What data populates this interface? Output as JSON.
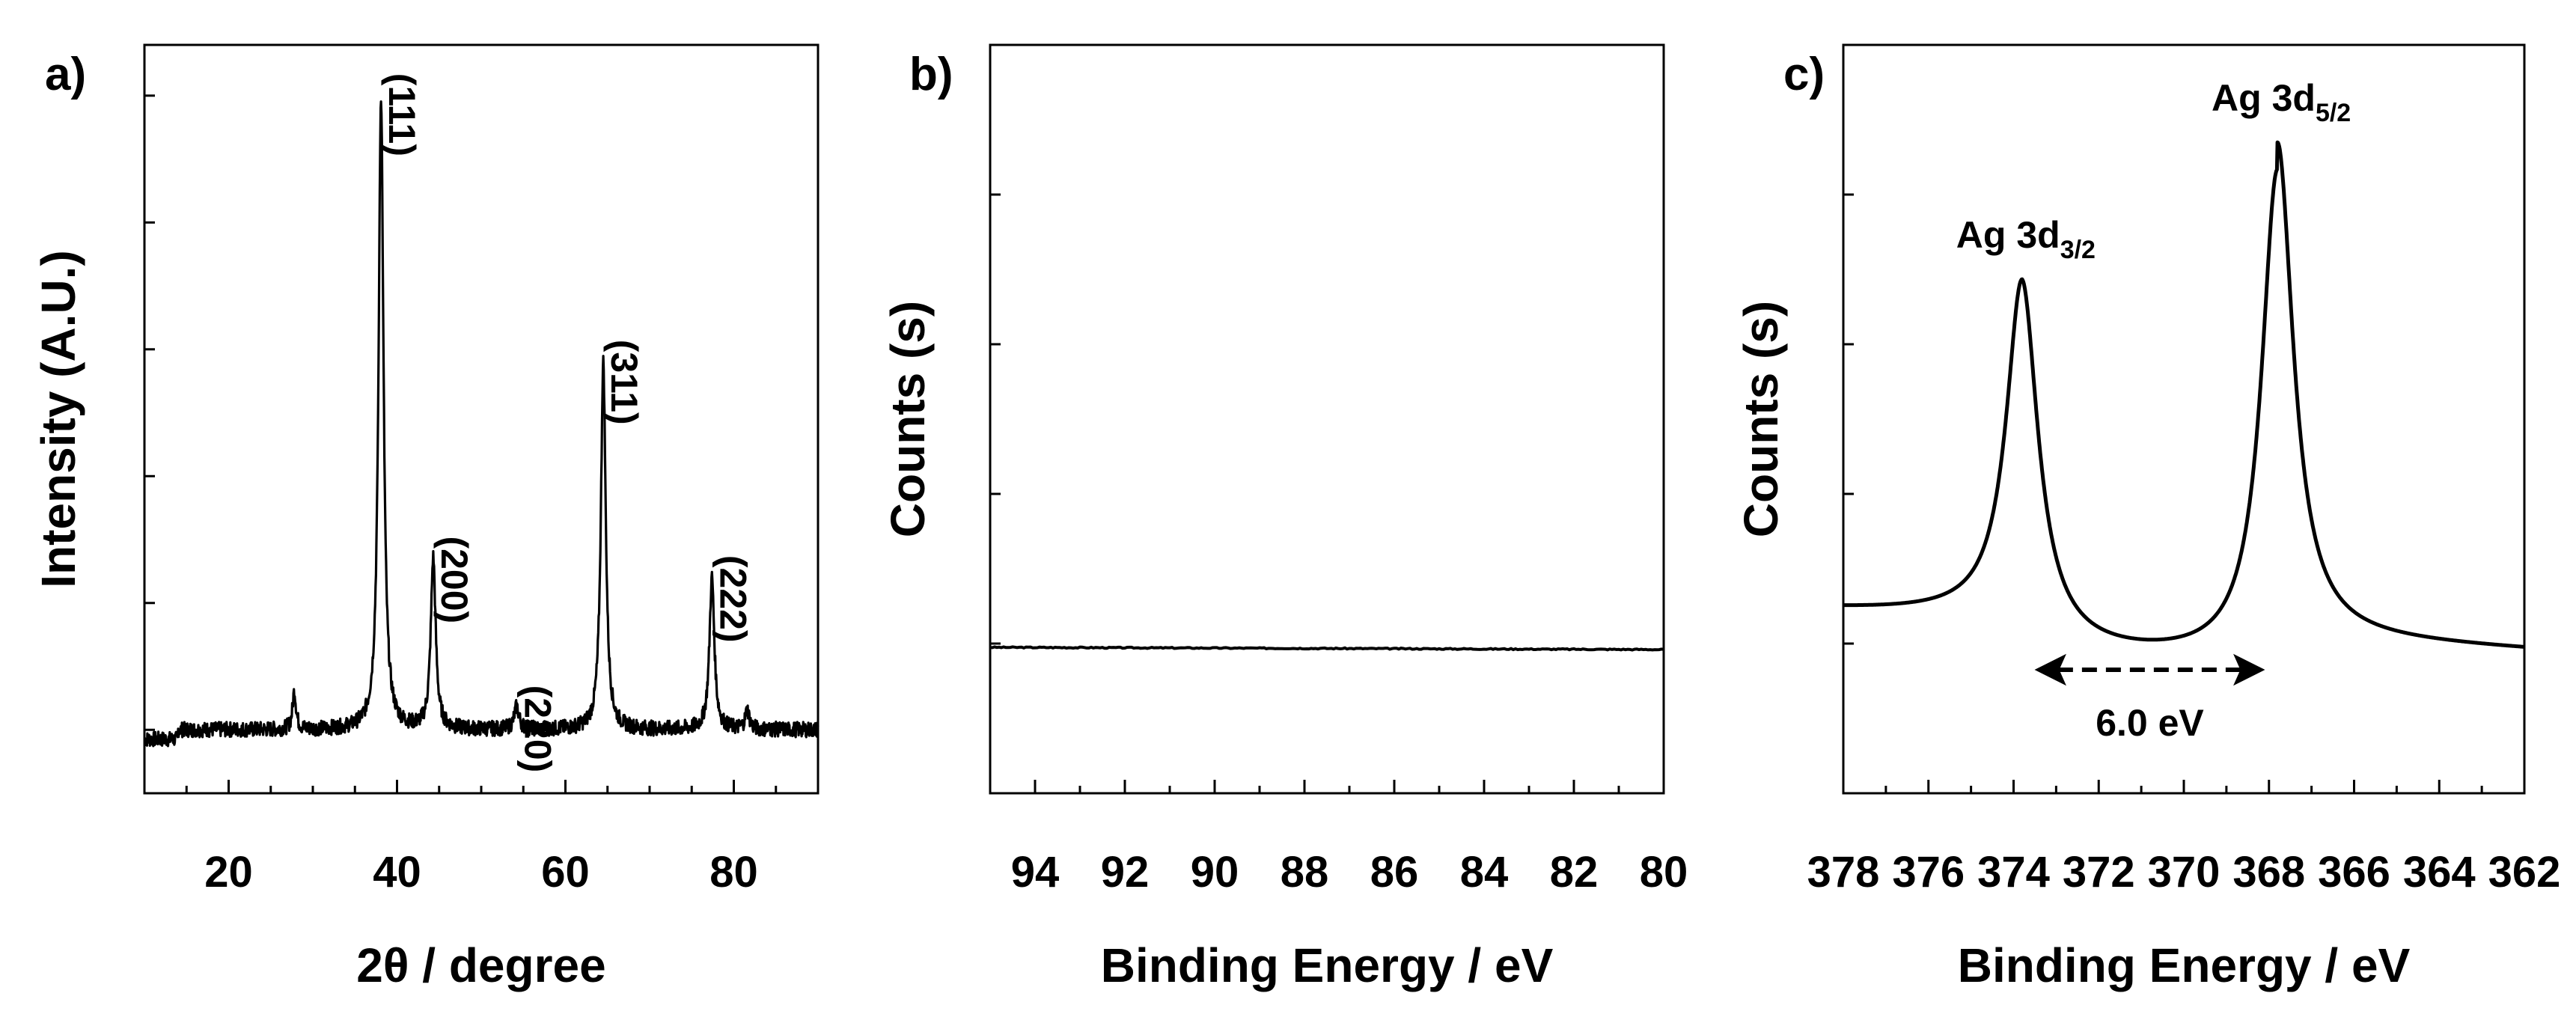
{
  "chart_data": [
    {
      "panel": "a)",
      "type": "line",
      "xlabel": "2θ / degree",
      "ylabel": "Intensity (A.U.)",
      "xlim": [
        10,
        90
      ],
      "ylim": [
        -10,
        108
      ],
      "x_ticks": [
        20,
        40,
        60,
        80
      ],
      "y_ticks_labeled": false,
      "grid": false,
      "baseline": 0,
      "noise_amplitude": 1.2,
      "peaks": [
        {
          "label": "(111)",
          "x": 38.1,
          "y": 100,
          "width": 0.35
        },
        {
          "label": "(200)",
          "x": 44.3,
          "y": 27,
          "width": 0.35
        },
        {
          "label": "(220)",
          "x": 54.2,
          "y": 3.5,
          "width": 0.35
        },
        {
          "label": "(311)",
          "x": 64.5,
          "y": 58,
          "width": 0.35
        },
        {
          "label": "(222)",
          "x": 77.4,
          "y": 24,
          "width": 0.35
        },
        {
          "label": "",
          "x": 27.8,
          "y": 6,
          "width": 0.25
        },
        {
          "label": "",
          "x": 81.6,
          "y": 3,
          "width": 0.3
        }
      ]
    },
    {
      "panel": "b)",
      "type": "line",
      "xlabel": "Binding Energy / eV",
      "ylabel": "Counts (s)",
      "xlim": [
        95,
        80
      ],
      "x_reversed": true,
      "ylim": [
        0,
        100
      ],
      "x_ticks": [
        94,
        92,
        90,
        88,
        86,
        84,
        82,
        80
      ],
      "y_ticks_labeled": false,
      "grid": false,
      "x": [
        95,
        80
      ],
      "y": [
        19.5,
        19.2
      ]
    },
    {
      "panel": "c)",
      "type": "line",
      "xlabel": "Binding Energy / eV",
      "ylabel": "Counts (s)",
      "xlim": [
        378,
        362
      ],
      "x_reversed": true,
      "ylim": [
        0,
        100
      ],
      "x_ticks": [
        378,
        376,
        374,
        372,
        370,
        368,
        366,
        364,
        362
      ],
      "y_ticks_labeled": false,
      "grid": false,
      "background_start": 24.5,
      "background_end": 20.0,
      "peaks": [
        {
          "label": "Ag 3d",
          "subscript": "3/2",
          "x": 373.8,
          "height": 45,
          "width": 0.45
        },
        {
          "label": "Ag 3d",
          "subscript": "5/2",
          "x": 367.8,
          "height": 66,
          "width": 0.45
        }
      ],
      "annotation": {
        "text": "6.0 eV",
        "from": 373.8,
        "to": 367.8,
        "y": 16.5
      }
    }
  ]
}
